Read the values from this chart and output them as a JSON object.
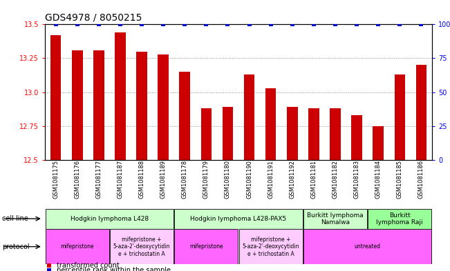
{
  "title": "GDS4978 / 8050215",
  "samples": [
    "GSM1081175",
    "GSM1081176",
    "GSM1081177",
    "GSM1081187",
    "GSM1081188",
    "GSM1081189",
    "GSM1081178",
    "GSM1081179",
    "GSM1081180",
    "GSM1081190",
    "GSM1081191",
    "GSM1081192",
    "GSM1081181",
    "GSM1081182",
    "GSM1081183",
    "GSM1081184",
    "GSM1081185",
    "GSM1081186"
  ],
  "bar_values": [
    13.42,
    13.31,
    13.31,
    13.44,
    13.3,
    13.28,
    13.15,
    12.88,
    12.89,
    13.13,
    13.03,
    12.89,
    12.88,
    12.88,
    12.83,
    12.75,
    13.13,
    13.2
  ],
  "percentile_values": [
    100,
    100,
    100,
    100,
    100,
    100,
    100,
    100,
    100,
    100,
    100,
    100,
    100,
    100,
    100,
    100,
    100,
    100
  ],
  "bar_color": "#cc0000",
  "percentile_color": "#0000cc",
  "ylim_left": [
    12.5,
    13.5
  ],
  "yticks_left": [
    12.5,
    12.75,
    13.0,
    13.25,
    13.5
  ],
  "ylim_right": [
    0,
    100
  ],
  "yticks_right": [
    0,
    25,
    50,
    75,
    100
  ],
  "ytick_labels_right": [
    "0",
    "25",
    "50",
    "75",
    "100%"
  ],
  "bar_width": 0.5,
  "cell_line_groups": [
    {
      "label": "Hodgkin lymphoma L428",
      "start": 0,
      "end": 6,
      "color": "#ccffcc"
    },
    {
      "label": "Hodgkin lymphoma L428-PAX5",
      "start": 6,
      "end": 12,
      "color": "#ccffcc"
    },
    {
      "label": "Burkitt lymphoma\nNamalwa",
      "start": 12,
      "end": 15,
      "color": "#ccffcc"
    },
    {
      "label": "Burkitt\nlymphoma Raji",
      "start": 15,
      "end": 18,
      "color": "#99ff99"
    }
  ],
  "protocol_groups": [
    {
      "label": "mifepristone",
      "start": 0,
      "end": 3,
      "color": "#ff66ff"
    },
    {
      "label": "mifepristone +\n5-aza-2'-deoxycytidin\ne + trichostatin A",
      "start": 3,
      "end": 6,
      "color": "#ffccff"
    },
    {
      "label": "mifepristone",
      "start": 6,
      "end": 9,
      "color": "#ff66ff"
    },
    {
      "label": "mifepristone +\n5-aza-2'-deoxycytidin\ne + trichostatin A",
      "start": 9,
      "end": 12,
      "color": "#ffccff"
    },
    {
      "label": "untreated",
      "start": 12,
      "end": 18,
      "color": "#ff66ff"
    }
  ],
  "bg_color": "#ffffff",
  "grid_color": "#888888",
  "spine_color": "#000000",
  "title_fontsize": 10,
  "tick_fontsize": 7,
  "label_fontsize": 7,
  "sample_fontsize": 6
}
